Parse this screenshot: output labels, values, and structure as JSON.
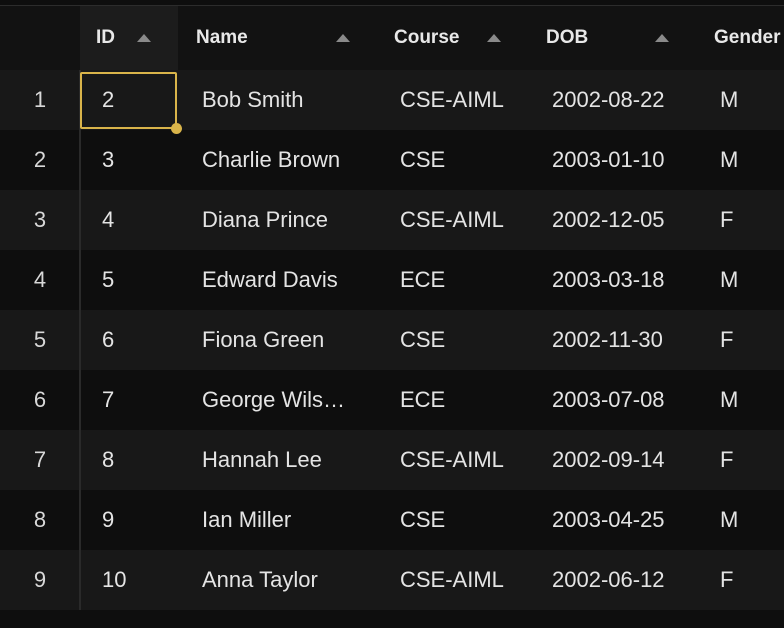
{
  "columns": [
    {
      "key": "id",
      "label": "ID"
    },
    {
      "key": "name",
      "label": "Name"
    },
    {
      "key": "course",
      "label": "Course"
    },
    {
      "key": "dob",
      "label": "DOB"
    },
    {
      "key": "gender",
      "label": "Gender"
    }
  ],
  "rows": [
    {
      "num": "1",
      "id": "2",
      "name": "Bob Smith",
      "course": "CSE-AIML",
      "dob": "2002-08-22",
      "gender": "M"
    },
    {
      "num": "2",
      "id": "3",
      "name": "Charlie Brown",
      "course": "CSE",
      "dob": "2003-01-10",
      "gender": "M"
    },
    {
      "num": "3",
      "id": "4",
      "name": "Diana Prince",
      "course": "CSE-AIML",
      "dob": "2002-12-05",
      "gender": "F"
    },
    {
      "num": "4",
      "id": "5",
      "name": "Edward Davis",
      "course": "ECE",
      "dob": "2003-03-18",
      "gender": "M"
    },
    {
      "num": "5",
      "id": "6",
      "name": "Fiona Green",
      "course": "CSE",
      "dob": "2002-11-30",
      "gender": "F"
    },
    {
      "num": "6",
      "id": "7",
      "name": "George Wils…",
      "course": "ECE",
      "dob": "2003-07-08",
      "gender": "M"
    },
    {
      "num": "7",
      "id": "8",
      "name": "Hannah Lee",
      "course": "CSE-AIML",
      "dob": "2002-09-14",
      "gender": "F"
    },
    {
      "num": "8",
      "id": "9",
      "name": "Ian Miller",
      "course": "CSE",
      "dob": "2003-04-25",
      "gender": "M"
    },
    {
      "num": "9",
      "id": "10",
      "name": "Anna Taylor",
      "course": "CSE-AIML",
      "dob": "2002-06-12",
      "gender": "F"
    }
  ],
  "selected_cell": {
    "row": "1",
    "column": "ID"
  },
  "colors": {
    "background": "#0e0e0e",
    "row_alt": "#181818",
    "selection": "#d9b44a",
    "text": "#e4e4e4"
  },
  "icons": {
    "sort": "triangle-up-icon"
  }
}
